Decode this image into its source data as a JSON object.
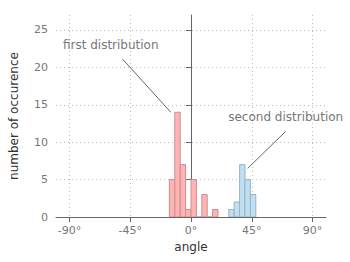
{
  "chart_data": {
    "type": "histogram",
    "x_label": "angle",
    "y_label": "number of occurence",
    "series": [
      {
        "name": "first distribution",
        "color": "#ffb3b3",
        "bins": [
          -16,
          -12,
          -8,
          -4,
          0,
          4,
          8,
          12,
          16,
          20
        ],
        "values": [
          5,
          14,
          7,
          1,
          5,
          0,
          3,
          0,
          1
        ]
      },
      {
        "name": "second distribution",
        "color": "#bfe0f2",
        "bins": [
          28,
          32,
          36,
          40,
          44,
          48
        ],
        "values": [
          1,
          2,
          7,
          5,
          3
        ]
      }
    ],
    "annotations": [
      {
        "text": "first distribution",
        "x": -15,
        "y": 14
      },
      {
        "text": "second distribution",
        "x": 42,
        "y": 6.5
      }
    ],
    "xlim": [
      -100,
      100
    ],
    "xticks": [
      {
        "value": -90,
        "label": "-90°"
      },
      {
        "value": -45,
        "label": "-45°"
      },
      {
        "value": 0,
        "label": "0°"
      },
      {
        "value": 45,
        "label": "45°"
      },
      {
        "value": 90,
        "label": "90°"
      }
    ],
    "ylim": [
      0,
      27
    ],
    "yticks": [
      0,
      5,
      10,
      15,
      20,
      25
    ],
    "grid": true
  }
}
